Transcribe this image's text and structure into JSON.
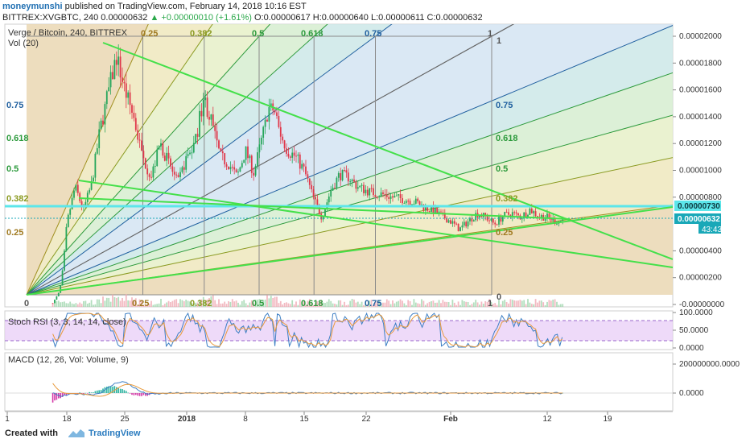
{
  "header": {
    "author": "moneymunshi",
    "published": "published on TradingView.com, February 14, 2018 10:16 EST",
    "symbol": "BITTREX:XVGBTC, 240",
    "last": "0.00000632",
    "change": "▲ +0.00000010 (+1.61%)",
    "o": "O:0.00000617",
    "h": "H:0.00000640",
    "l": "L:0.00000611",
    "c": "C:0.00000632"
  },
  "main_pane": {
    "title": "Verge / Bitcoin, 240, BITTREX",
    "vol_label": "Vol (20)"
  },
  "price_labels": {
    "cyan": "0.00000730",
    "current": "0.00000632",
    "countdown": "43:43"
  },
  "fib": {
    "left_labels": [
      "0.75",
      "0.618",
      "0.5",
      "0.382",
      "0.25"
    ],
    "top_labels": [
      "0.25",
      "0.382",
      "0.5",
      "0.618",
      "0.75",
      "1"
    ],
    "bottom_labels": [
      "0",
      "0.25",
      "0.382",
      "0.5",
      "0.618",
      "0.75",
      "1"
    ],
    "right_labels": [
      "0.75",
      "0.618",
      "0.5",
      "0.382",
      "0.25"
    ],
    "edge_labels": [
      "1",
      "0"
    ]
  },
  "stoch": {
    "label": "Stoch RSI (3, 3, 14, 14, close)"
  },
  "macd": {
    "label": "MACD (12, 26, Vol: Volume, 9)"
  },
  "footer": {
    "created": "Created with",
    "brand": "TradingView"
  },
  "colors": {
    "candle_up": "#26a65b",
    "candle_down": "#e0374a",
    "trend": "#44e04a",
    "cyan_line": "#5ce6ea",
    "current_price": "#19a8b8",
    "fib_blue": "#1f5f9f",
    "fib_green": "#2c9a3c",
    "fib_olive": "#a09020"
  },
  "chart_data": [
    {
      "type": "candlestick",
      "title": "Verge / Bitcoin, 240, BITTREX",
      "x_tick_labels": [
        "1",
        "18",
        "25",
        "2018",
        "8",
        "15",
        "22",
        "Feb",
        "12",
        "19"
      ],
      "y_tick_labels": [
        "0.00002000",
        "0.00001800",
        "0.00001600",
        "0.00001400",
        "0.00001200",
        "0.00001000",
        "0.00000800",
        "0.00000400",
        "0.00000200",
        "-0.00000000"
      ],
      "ylim": [
        0,
        2e-05
      ],
      "close_path": [
        [
          "12-14",
          1e-07
        ],
        [
          "12-16",
          1e-06
        ],
        [
          "12-17",
          2.9e-06
        ],
        [
          "12-18",
          6e-06
        ],
        [
          "12-19",
          8.8e-06
        ],
        [
          "12-20",
          7e-06
        ],
        [
          "12-21",
          9e-06
        ],
        [
          "12-22",
          1.3e-05
        ],
        [
          "12-23",
          1.58e-05
        ],
        [
          "12-24",
          1.85e-05
        ],
        [
          "12-25",
          1.6e-05
        ],
        [
          "12-26",
          1.4e-05
        ],
        [
          "12-27",
          1.1e-05
        ],
        [
          "12-28",
          9.5e-06
        ],
        [
          "12-29",
          1.2e-05
        ],
        [
          "12-30",
          1.05e-05
        ],
        [
          "12-31",
          9e-06
        ],
        [
          "01-01",
          1.1e-05
        ],
        [
          "01-02",
          1.2e-05
        ],
        [
          "01-03",
          1.55e-05
        ],
        [
          "01-04",
          1.35e-05
        ],
        [
          "01-05",
          1.1e-05
        ],
        [
          "01-06",
          1.05e-05
        ],
        [
          "01-07",
          9.5e-06
        ],
        [
          "01-08",
          1.15e-05
        ],
        [
          "01-09",
          9.8e-06
        ],
        [
          "01-10",
          1.25e-05
        ],
        [
          "01-11",
          1.5e-05
        ],
        [
          "01-12",
          1.3e-05
        ],
        [
          "01-13",
          1.15e-05
        ],
        [
          "01-14",
          1.1e-05
        ],
        [
          "01-15",
          1e-05
        ],
        [
          "01-16",
          8e-06
        ],
        [
          "01-17",
          6.5e-06
        ],
        [
          "01-18",
          8.5e-06
        ],
        [
          "01-19",
          9.7e-06
        ],
        [
          "01-20",
          9.5e-06
        ],
        [
          "01-21",
          8.8e-06
        ],
        [
          "01-22",
          8.5e-06
        ],
        [
          "01-23",
          8.3e-06
        ],
        [
          "01-24",
          8.2e-06
        ],
        [
          "01-25",
          8e-06
        ],
        [
          "01-26",
          7.9e-06
        ],
        [
          "01-27",
          7.8e-06
        ],
        [
          "01-28",
          7.6e-06
        ],
        [
          "01-29",
          7.2e-06
        ],
        [
          "01-30",
          7e-06
        ],
        [
          "01-31",
          6.6e-06
        ],
        [
          "02-01",
          6.2e-06
        ],
        [
          "02-02",
          5.6e-06
        ],
        [
          "02-03",
          6.2e-06
        ],
        [
          "02-04",
          6.8e-06
        ],
        [
          "02-05",
          6.5e-06
        ],
        [
          "02-06",
          6e-06
        ],
        [
          "02-07",
          6.6e-06
        ],
        [
          "02-08",
          6.8e-06
        ],
        [
          "02-09",
          6.5e-06
        ],
        [
          "02-10",
          7.1e-06
        ],
        [
          "02-11",
          6.6e-06
        ],
        [
          "02-12",
          6.5e-06
        ],
        [
          "02-13",
          6.2e-06
        ],
        [
          "02-14",
          6.32e-06
        ]
      ],
      "indicators": [
        "Vol (20)",
        "Stoch RSI (3, 3, 14, 14, close)",
        "MACD (12, 26, Vol: Volume, 9)"
      ],
      "stoch_y_tick_labels": [
        "100.0000",
        "50.0000",
        "0.0000"
      ],
      "macd_y_tick_labels": [
        "200000000.0000",
        "0.0000"
      ]
    }
  ]
}
